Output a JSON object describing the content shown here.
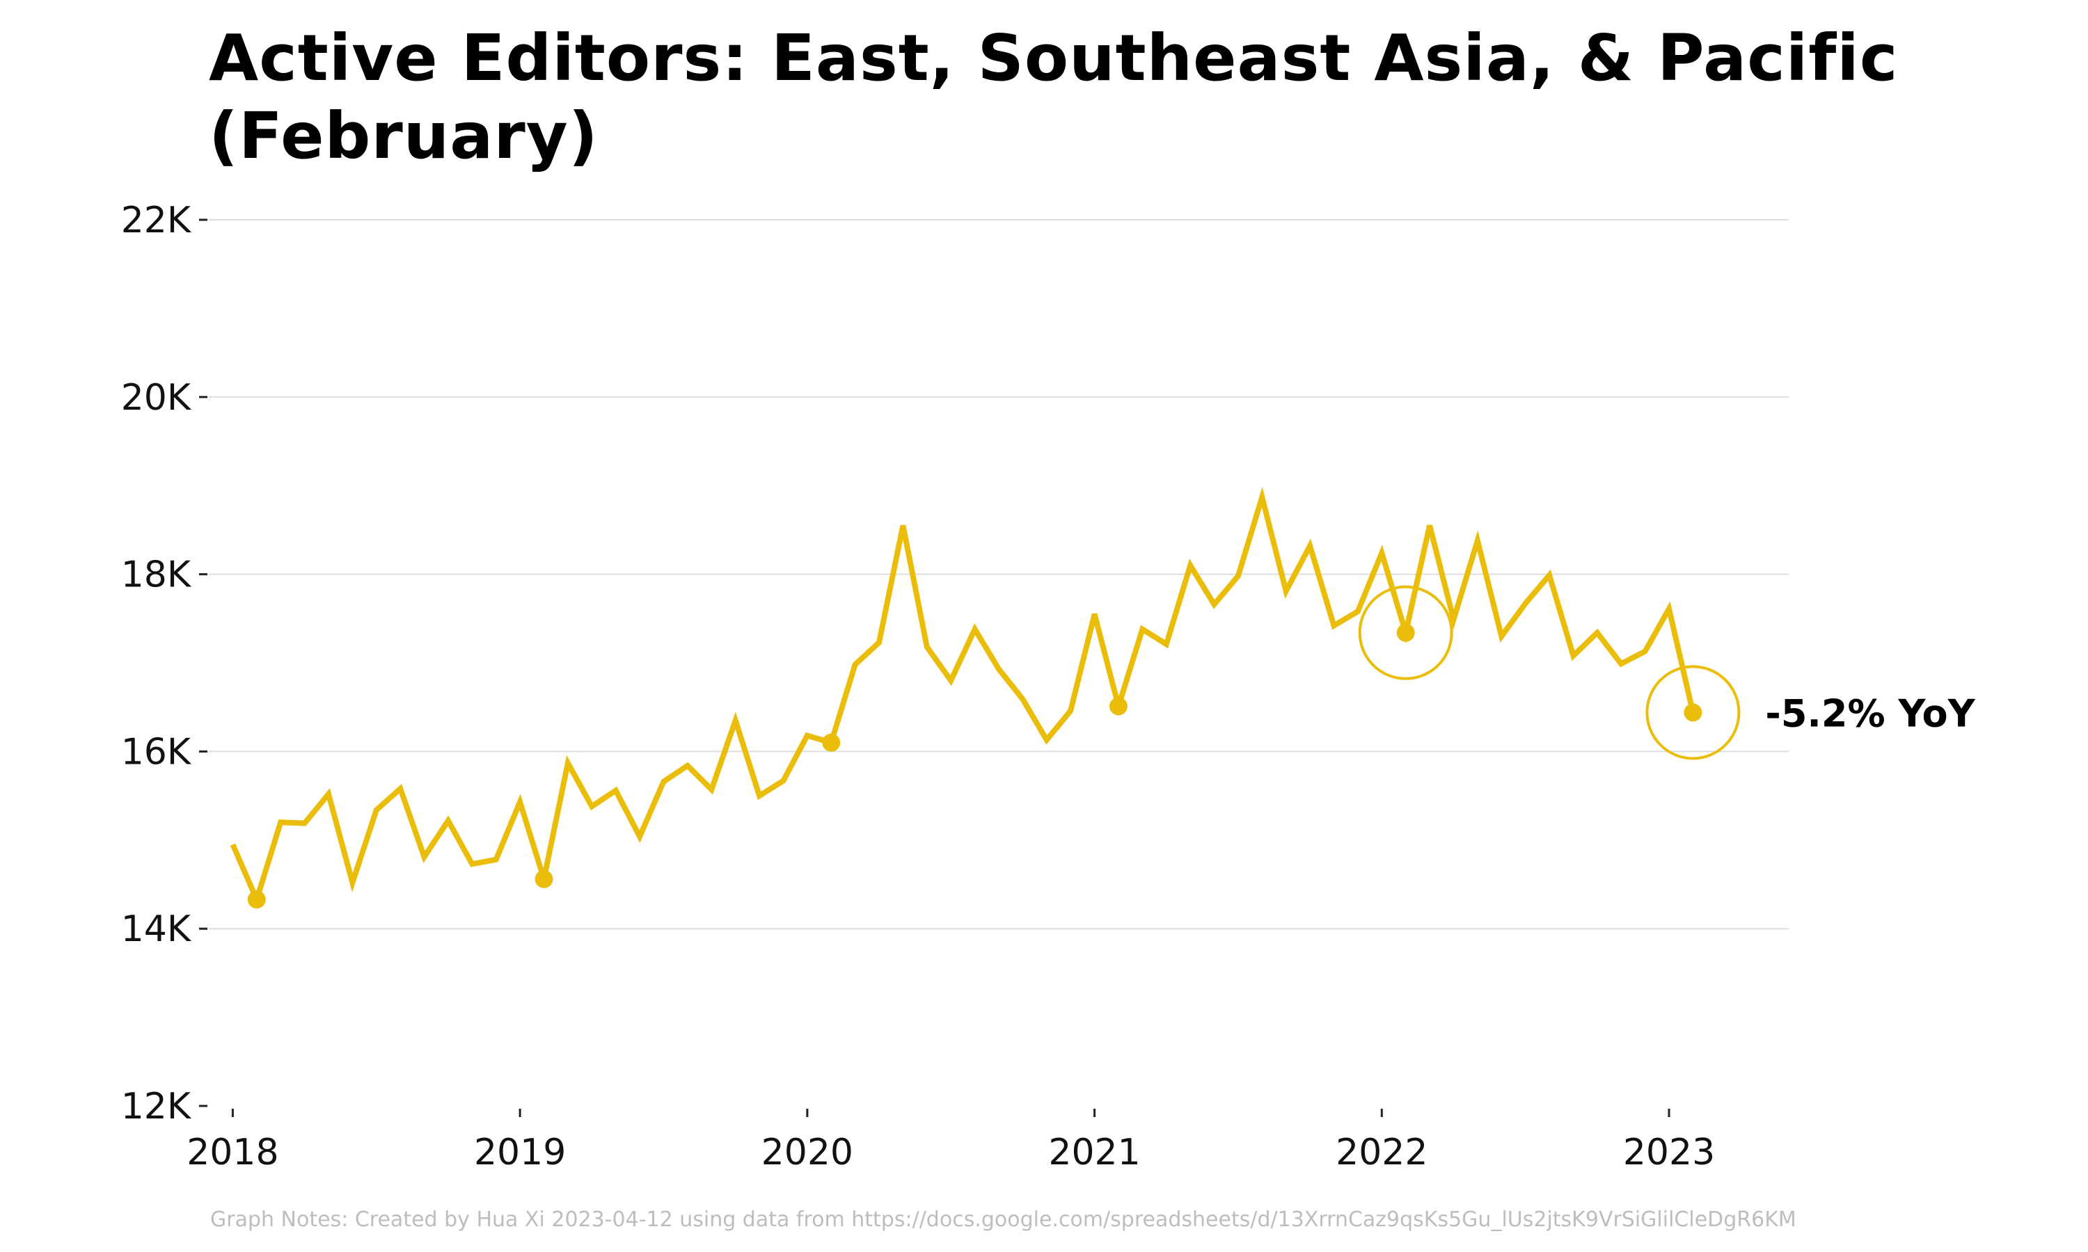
{
  "title": "Active Editors: East, Southeast Asia, & Pacific (February)",
  "notes": "Graph Notes: Created by Hua Xi 2023-04-12 using data from https://docs.google.com/spreadsheets/d/13XrrnCaz9qsKs5Gu_lUs2jtsK9VrSiGlilCleDgR6KM",
  "colors": {
    "line": "#EBBD0B",
    "grid": "#dddddd",
    "text": "#111111"
  },
  "chart_data": {
    "type": "line",
    "title": "Active Editors: East, Southeast Asia, & Pacific (February)",
    "xlabel": "",
    "ylabel": "",
    "ylim": [
      12000,
      22000
    ],
    "xlim": [
      "2017-12-01",
      "2023-06-01"
    ],
    "grid": true,
    "legend": "none",
    "y_ticks": [
      {
        "value": 12000,
        "label": "12K"
      },
      {
        "value": 14000,
        "label": "14K"
      },
      {
        "value": 16000,
        "label": "16K"
      },
      {
        "value": 18000,
        "label": "18K"
      },
      {
        "value": 20000,
        "label": "20K"
      },
      {
        "value": 22000,
        "label": "22K"
      }
    ],
    "x_ticks": [
      {
        "value": "2018-01",
        "label": "2018"
      },
      {
        "value": "2019-01",
        "label": "2019"
      },
      {
        "value": "2020-01",
        "label": "2020"
      },
      {
        "value": "2021-01",
        "label": "2021"
      },
      {
        "value": "2022-01",
        "label": "2022"
      },
      {
        "value": "2023-01",
        "label": "2023"
      }
    ],
    "series": [
      {
        "x": [
          "2018-01",
          "2018-02",
          "2018-03",
          "2018-04",
          "2018-05",
          "2018-06",
          "2018-07",
          "2018-08",
          "2018-09",
          "2018-10",
          "2018-11",
          "2018-12",
          "2019-01",
          "2019-02",
          "2019-03",
          "2019-04",
          "2019-05",
          "2019-06",
          "2019-07",
          "2019-08",
          "2019-09",
          "2019-10",
          "2019-11",
          "2019-12",
          "2020-01",
          "2020-02",
          "2020-03",
          "2020-04",
          "2020-05",
          "2020-06",
          "2020-07",
          "2020-08",
          "2020-09",
          "2020-10",
          "2020-11",
          "2020-12",
          "2021-01",
          "2021-02",
          "2021-03",
          "2021-04",
          "2021-05",
          "2021-06",
          "2021-07",
          "2021-08",
          "2021-09",
          "2021-10",
          "2021-11",
          "2021-12",
          "2022-01",
          "2022-02",
          "2022-03",
          "2022-04",
          "2022-05",
          "2022-06",
          "2022-07",
          "2022-08",
          "2022-09",
          "2022-10",
          "2022-11",
          "2022-12",
          "2023-01",
          "2023-02"
        ],
        "values": [
          14950,
          14330,
          15200,
          15190,
          15520,
          14520,
          15340,
          15580,
          14810,
          15220,
          14730,
          14780,
          15430,
          14560,
          15870,
          15380,
          15560,
          15040,
          15660,
          15840,
          15570,
          16350,
          15500,
          15670,
          16180,
          16100,
          16980,
          17230,
          18550,
          17180,
          16800,
          17380,
          16930,
          16590,
          16130,
          16460,
          17550,
          16510,
          17380,
          17210,
          18100,
          17660,
          17980,
          18870,
          17810,
          18320,
          17420,
          17580,
          18240,
          17340,
          18550,
          17490,
          18380,
          17300,
          17670,
          17990,
          17080,
          17340,
          16990,
          17130,
          17610,
          16440
        ]
      }
    ],
    "highlighted_points": [
      {
        "x": "2018-02",
        "value": 14330
      },
      {
        "x": "2019-02",
        "value": 14560
      },
      {
        "x": "2020-02",
        "value": 16100
      },
      {
        "x": "2021-02",
        "value": 16510
      },
      {
        "x": "2022-02",
        "value": 17340
      },
      {
        "x": "2023-02",
        "value": 16440
      }
    ],
    "circled_points": [
      {
        "x": "2022-02",
        "value": 17340
      },
      {
        "x": "2023-02",
        "value": 16440
      }
    ],
    "annotation": {
      "x": "2023-02",
      "value": 16440,
      "text": "-5.2% YoY"
    }
  }
}
